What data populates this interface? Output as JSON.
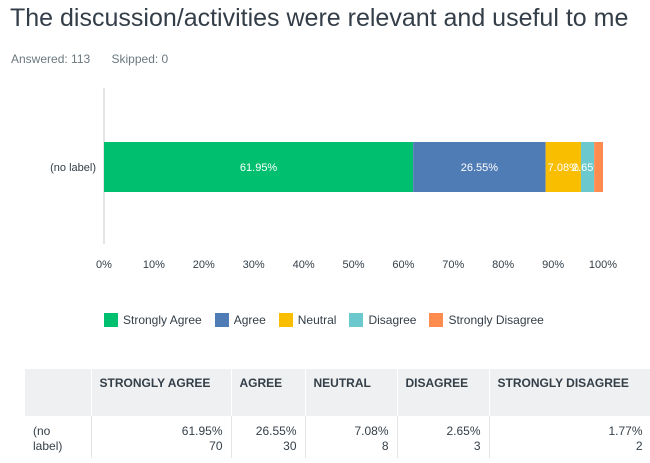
{
  "question": {
    "title": "The discussion/activities were relevant and useful to me",
    "answered_label": "Answered: 113",
    "skipped_label": "Skipped: 0"
  },
  "colors": {
    "strongly_agree": "#00bf6f",
    "agree": "#507cb6",
    "neutral": "#f9be00",
    "disagree": "#6bc8cd",
    "strongly_disagree": "#ff8b4f"
  },
  "chart_data": {
    "type": "bar",
    "orientation": "horizontal",
    "stacked": true,
    "categories": [
      "(no label)"
    ],
    "series": [
      {
        "name": "Strongly Agree",
        "values": [
          61.95
        ],
        "color": "#00bf6f",
        "label": "61.95%"
      },
      {
        "name": "Agree",
        "values": [
          26.55
        ],
        "color": "#507cb6",
        "label": "26.55%"
      },
      {
        "name": "Neutral",
        "values": [
          7.08
        ],
        "color": "#f9be00",
        "label": "7.08%"
      },
      {
        "name": "Disagree",
        "values": [
          2.65
        ],
        "color": "#6bc8cd",
        "label": "2.65%"
      },
      {
        "name": "Strongly Disagree",
        "values": [
          1.77
        ],
        "color": "#ff8b4f",
        "label": ""
      }
    ],
    "xlim": [
      0,
      100
    ],
    "xticks": [
      "0%",
      "10%",
      "20%",
      "30%",
      "40%",
      "50%",
      "60%",
      "70%",
      "80%",
      "90%",
      "100%"
    ],
    "legend_position": "bottom",
    "grid": false
  },
  "table": {
    "headers": [
      "",
      "STRONGLY AGREE",
      "AGREE",
      "NEUTRAL",
      "DISAGREE",
      "STRONGLY DISAGREE"
    ],
    "rows": [
      {
        "label": "(no label)",
        "cells": [
          {
            "percent": "61.95%",
            "count": "70"
          },
          {
            "percent": "26.55%",
            "count": "30"
          },
          {
            "percent": "7.08%",
            "count": "8"
          },
          {
            "percent": "2.65%",
            "count": "3"
          },
          {
            "percent": "1.77%",
            "count": "2"
          }
        ]
      }
    ]
  }
}
